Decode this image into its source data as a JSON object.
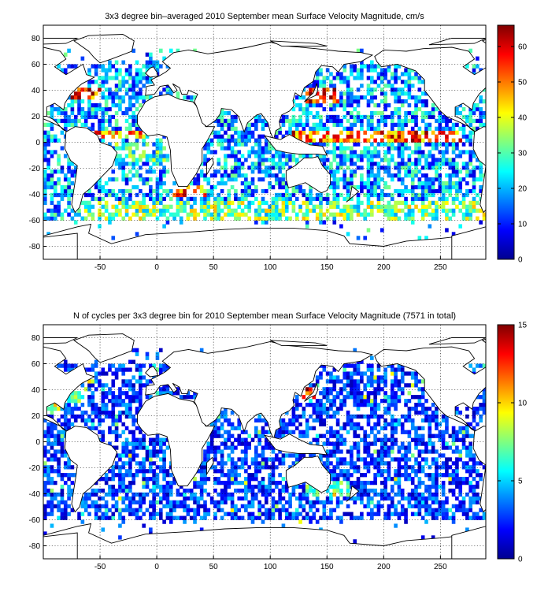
{
  "chart_data": [
    {
      "type": "heatmap",
      "title": "3x3 degree bin–averaged 2010 September mean Surface Velocity Magnitude, cm/s",
      "xlabel": "",
      "ylabel": "",
      "xlim": [
        -100,
        290
      ],
      "ylim": [
        -90,
        90
      ],
      "xticks": [
        -50,
        0,
        50,
        100,
        150,
        200,
        250
      ],
      "yticks": [
        -80,
        -60,
        -40,
        -20,
        0,
        20,
        40,
        60,
        80
      ],
      "grid": true,
      "bin_size_deg": 3,
      "colormap": "jet",
      "colorbar": {
        "min": 0,
        "max": 66,
        "ticks": [
          0,
          10,
          20,
          30,
          40,
          50,
          60
        ]
      },
      "value_pattern": {
        "background": 19,
        "bands": [
          {
            "lat_min": 0,
            "lat_max": 9,
            "lon_min": 120,
            "lon_max": 270,
            "value": 52
          },
          {
            "lat_min": 3,
            "lat_max": 9,
            "lon_min": -60,
            "lon_max": -10,
            "value": 48
          },
          {
            "lat_min": 30,
            "lat_max": 42,
            "lon_min": 130,
            "lon_max": 160,
            "value": 58
          },
          {
            "lat_min": 33,
            "lat_max": 42,
            "lon_min": -75,
            "lon_max": -50,
            "value": 55
          },
          {
            "lat_min": -42,
            "lat_max": -33,
            "lon_min": 15,
            "lon_max": 45,
            "value": 50
          },
          {
            "lat_min": -60,
            "lat_max": -45,
            "lon_min": -70,
            "lon_max": 290,
            "value": 32
          },
          {
            "lat_min": -15,
            "lat_max": 0,
            "lon_min": -60,
            "lon_max": 40,
            "value": 26
          }
        ]
      }
    },
    {
      "type": "heatmap",
      "title": "N of cycles per 3x3 degree bin for 2010 September mean Surface Velocity Magnitude (7571 in total)",
      "xlabel": "",
      "ylabel": "",
      "xlim": [
        -100,
        290
      ],
      "ylim": [
        -90,
        90
      ],
      "xticks": [
        -50,
        0,
        50,
        100,
        150,
        200,
        250
      ],
      "yticks": [
        -80,
        -60,
        -40,
        -20,
        0,
        20,
        40,
        60,
        80
      ],
      "grid": true,
      "bin_size_deg": 3,
      "colormap": "jet",
      "colorbar": {
        "min": 0,
        "max": 15,
        "ticks": [
          0,
          5,
          10,
          15
        ]
      },
      "value_pattern": {
        "background": 2,
        "bands": [
          {
            "lat_min": 33,
            "lat_max": 42,
            "lon_min": 125,
            "lon_max": 140,
            "value": 11
          },
          {
            "lat_min": 20,
            "lat_max": 35,
            "lon_min": -100,
            "lon_max": -85,
            "value": 8
          },
          {
            "lat_min": 30,
            "lat_max": 42,
            "lon_min": -80,
            "lon_max": -60,
            "value": 6
          },
          {
            "lat_min": -42,
            "lat_max": -30,
            "lon_min": 130,
            "lon_max": 170,
            "value": 6
          }
        ]
      }
    }
  ],
  "colors": {
    "axis": "#000000",
    "land": "#ffffff",
    "colormap_stops": [
      "#00008f",
      "#0000ff",
      "#00ffff",
      "#ffff00",
      "#ff0000",
      "#800000"
    ]
  },
  "labels": {
    "top_title": "3x3 degree bin–averaged 2010 September mean Surface Velocity Magnitude, cm/s",
    "bottom_title": "N of cycles per 3x3 degree bin for 2010 September mean Surface Velocity Magnitude (7571 in total)"
  }
}
